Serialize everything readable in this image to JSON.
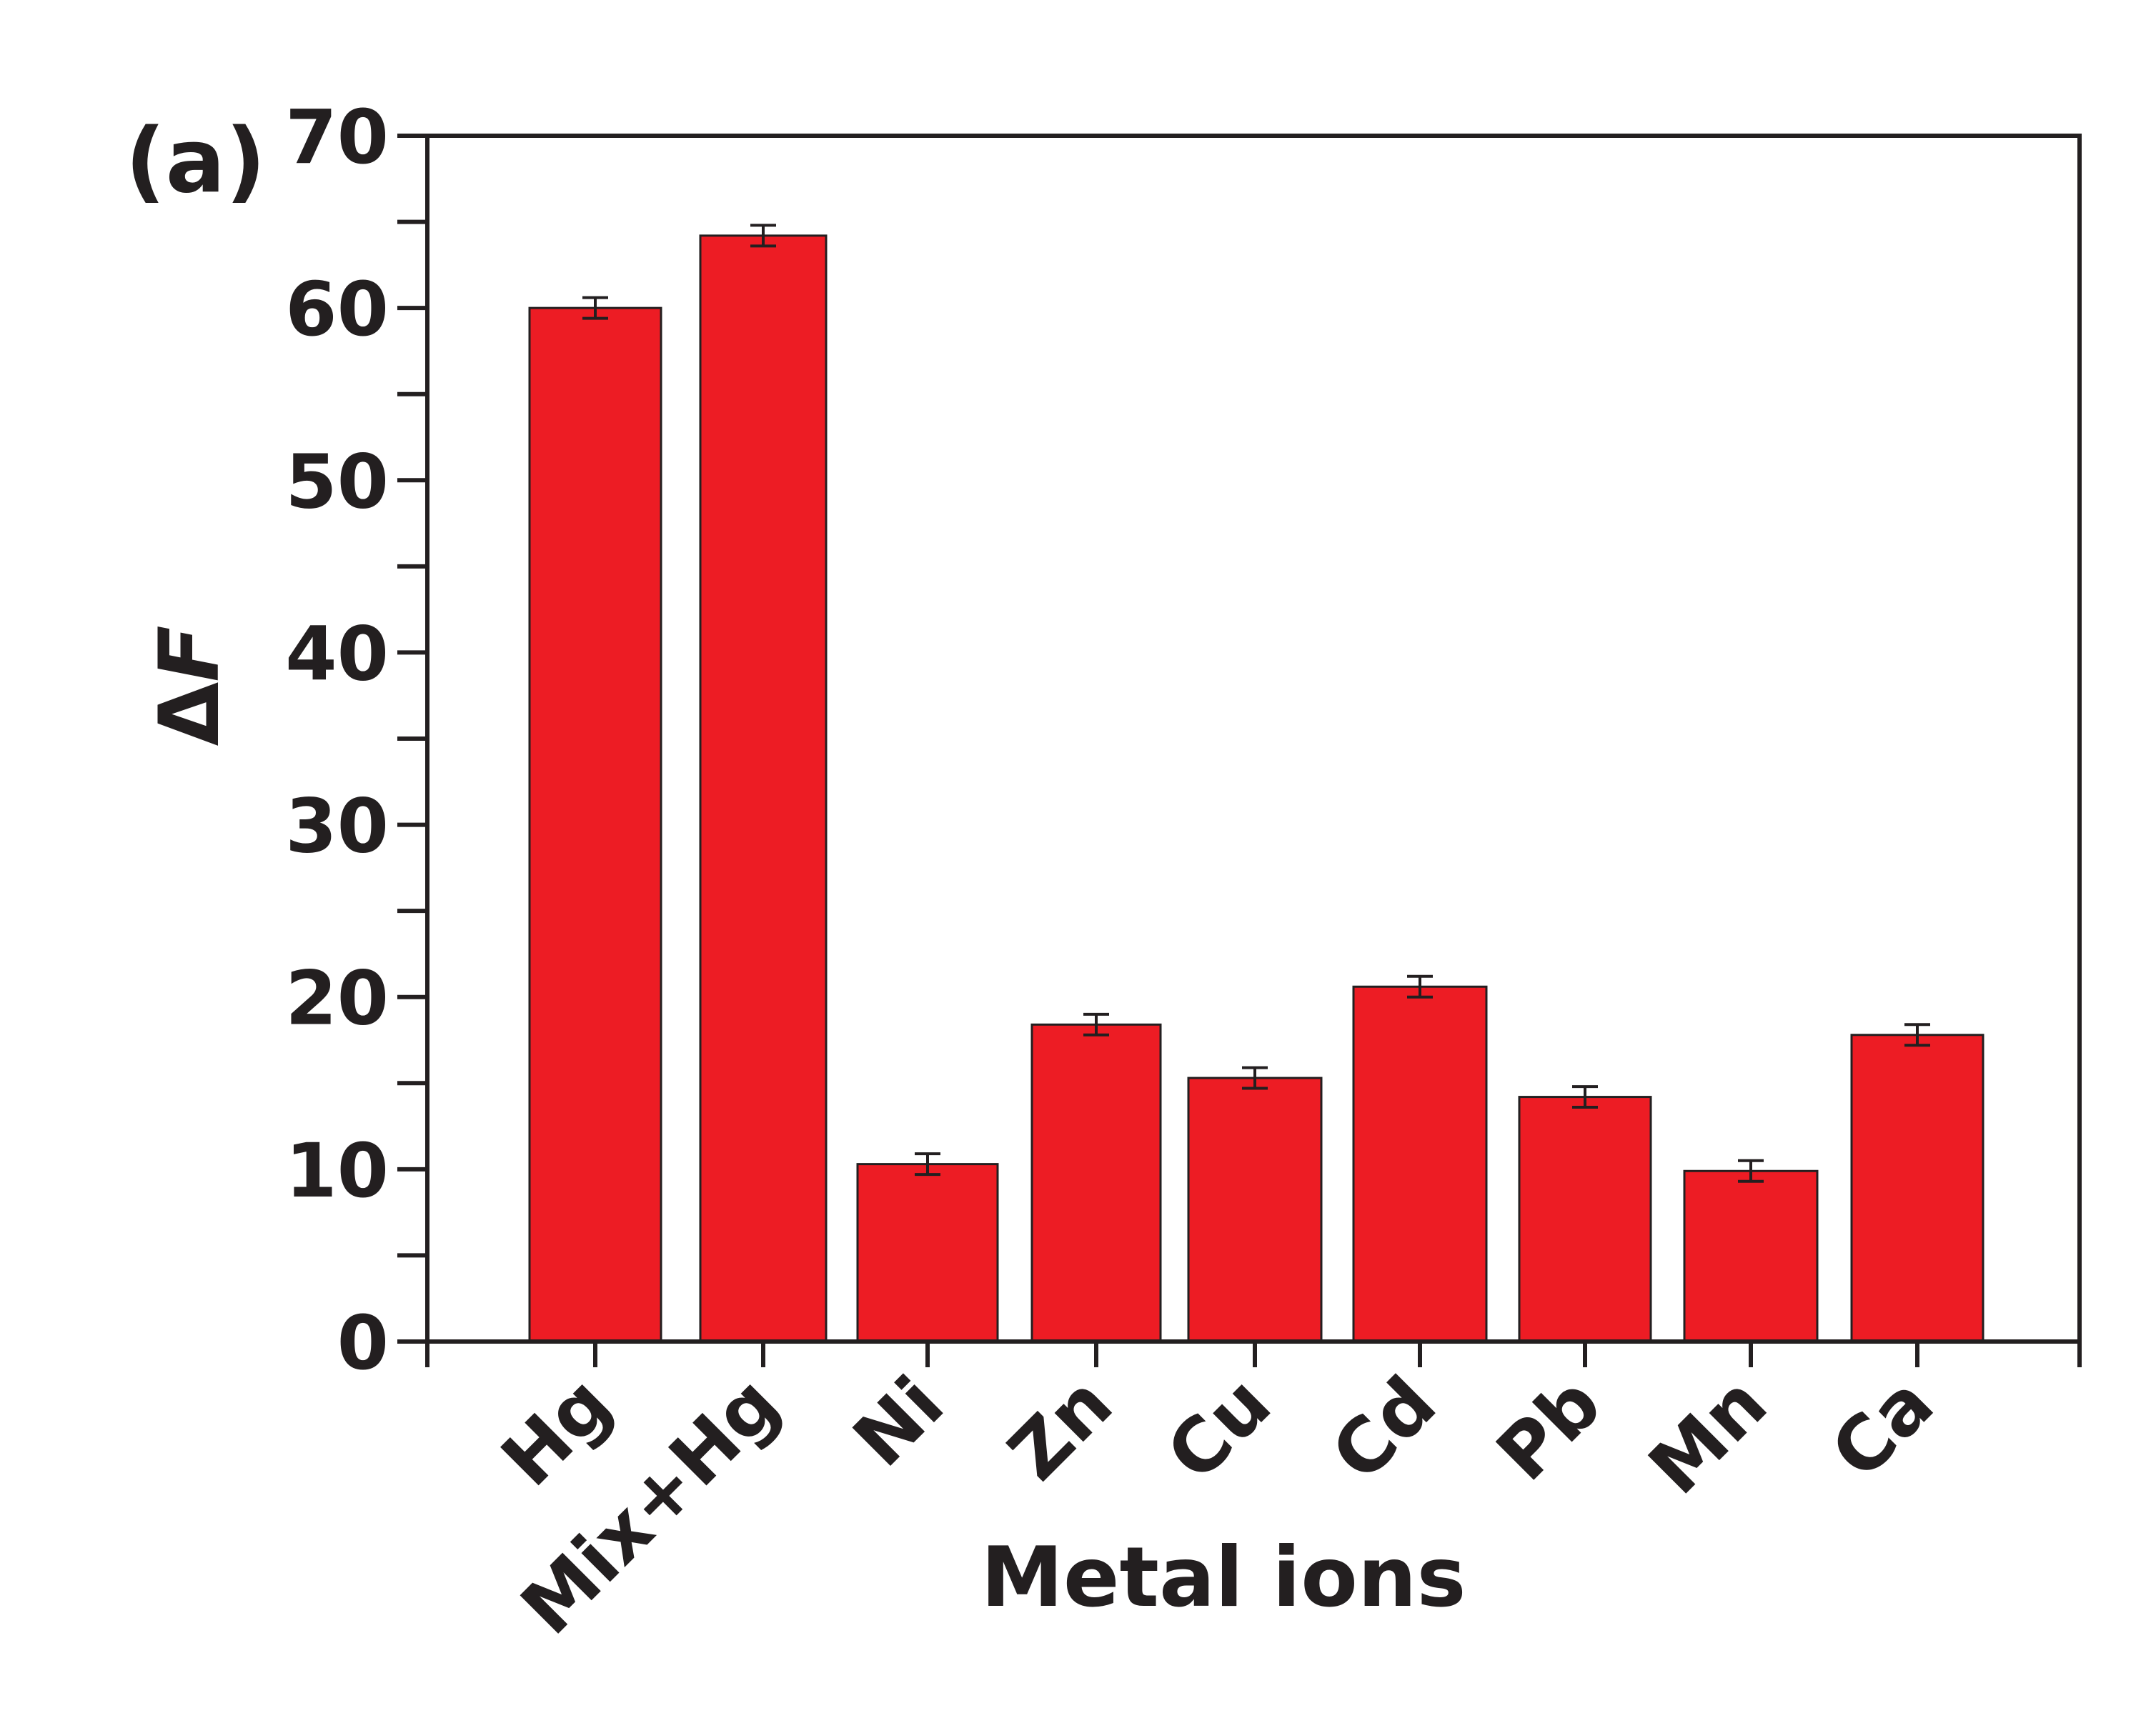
{
  "panel_label": "(a)",
  "chart_data": {
    "type": "bar",
    "categories": [
      "Hg",
      "Mix+Hg",
      "Ni",
      "Zn",
      "Cu",
      "Cd",
      "Pb",
      "Mn",
      "Ca"
    ],
    "values": [
      60.0,
      64.2,
      10.3,
      18.4,
      15.3,
      20.6,
      14.2,
      9.9,
      17.8
    ],
    "errors": [
      0.6,
      0.6,
      0.6,
      0.6,
      0.6,
      0.6,
      0.6,
      0.6,
      0.6
    ],
    "xlabel": "Metal ions",
    "ylabel_symbol": "Δ",
    "ylabel_var": "F",
    "ylim": [
      0,
      70
    ],
    "yticks": [
      0,
      10,
      20,
      30,
      40,
      50,
      60,
      70
    ],
    "bar_color": "#ed1c24",
    "outline_color": "#231f20",
    "grid": false,
    "legend": "none"
  }
}
